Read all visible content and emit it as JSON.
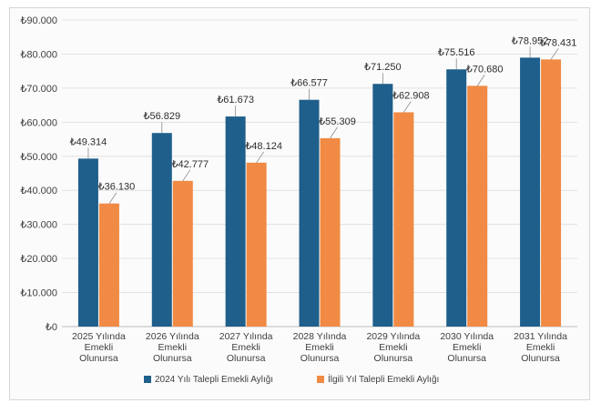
{
  "chart_data": {
    "type": "bar",
    "title": "",
    "xlabel": "",
    "ylabel": "",
    "ylim": [
      0,
      90000
    ],
    "ytick_values": [
      0,
      10000,
      20000,
      30000,
      40000,
      50000,
      60000,
      70000,
      80000,
      90000
    ],
    "ytick_labels": [
      "₺0",
      "₺10.000",
      "₺20.000",
      "₺30.000",
      "₺40.000",
      "₺50.000",
      "₺60.000",
      "₺70.000",
      "₺80.000",
      "₺90.000"
    ],
    "categories": [
      [
        "2025 Yılında",
        "Emekli",
        "Olunursa"
      ],
      [
        "2026 Yılında",
        "Emekli",
        "Olunursa"
      ],
      [
        "2027 Yılında",
        "Emekli",
        "Olunursa"
      ],
      [
        "2028 Yılında",
        "Emekli",
        "Olunursa"
      ],
      [
        "2029 Yılında",
        "Emekli",
        "Olunursa"
      ],
      [
        "2030 Yılında",
        "Emekli",
        "Olunursa"
      ],
      [
        "2031 Yılında",
        "Emekli",
        "Olunursa"
      ]
    ],
    "series": [
      {
        "name": "2024 Yılı Talepli Emekli Aylığı",
        "color": "#1f5f8b",
        "values": [
          49314,
          56829,
          61673,
          66577,
          71250,
          75516,
          78952
        ],
        "labels": [
          "₺49.314",
          "₺56.829",
          "₺61.673",
          "₺66.577",
          "₺71.250",
          "₺75.516",
          "₺78.952"
        ]
      },
      {
        "name": "İlgili Yıl Talepli Emekli Aylığı",
        "color": "#f08a44",
        "values": [
          36130,
          42777,
          48124,
          55309,
          62908,
          70680,
          78431
        ],
        "labels": [
          "₺36.130",
          "₺42.777",
          "₺48.124",
          "₺55.309",
          "₺62.908",
          "₺70.680",
          "₺78.431"
        ]
      }
    ],
    "grid": true,
    "legend": "bottom"
  }
}
